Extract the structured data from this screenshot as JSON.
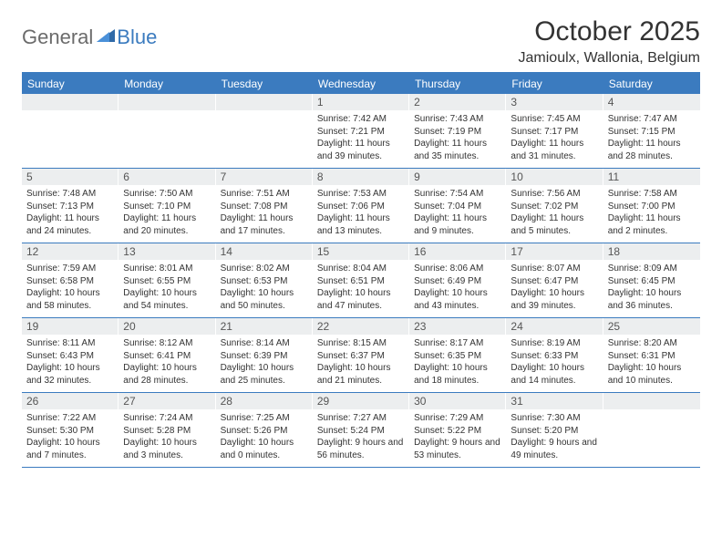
{
  "brand": {
    "part1": "General",
    "part2": "Blue"
  },
  "title": "October 2025",
  "location": "Jamioulx, Wallonia, Belgium",
  "colors": {
    "accent": "#3b7bbf",
    "daynum_bg": "#eceeef",
    "text": "#333333",
    "logo_gray": "#6b6b6b"
  },
  "day_names": [
    "Sunday",
    "Monday",
    "Tuesday",
    "Wednesday",
    "Thursday",
    "Friday",
    "Saturday"
  ],
  "weeks": [
    [
      {
        "n": "",
        "sr": "",
        "ss": "",
        "dl": ""
      },
      {
        "n": "",
        "sr": "",
        "ss": "",
        "dl": ""
      },
      {
        "n": "",
        "sr": "",
        "ss": "",
        "dl": ""
      },
      {
        "n": "1",
        "sr": "Sunrise: 7:42 AM",
        "ss": "Sunset: 7:21 PM",
        "dl": "Daylight: 11 hours and 39 minutes."
      },
      {
        "n": "2",
        "sr": "Sunrise: 7:43 AM",
        "ss": "Sunset: 7:19 PM",
        "dl": "Daylight: 11 hours and 35 minutes."
      },
      {
        "n": "3",
        "sr": "Sunrise: 7:45 AM",
        "ss": "Sunset: 7:17 PM",
        "dl": "Daylight: 11 hours and 31 minutes."
      },
      {
        "n": "4",
        "sr": "Sunrise: 7:47 AM",
        "ss": "Sunset: 7:15 PM",
        "dl": "Daylight: 11 hours and 28 minutes."
      }
    ],
    [
      {
        "n": "5",
        "sr": "Sunrise: 7:48 AM",
        "ss": "Sunset: 7:13 PM",
        "dl": "Daylight: 11 hours and 24 minutes."
      },
      {
        "n": "6",
        "sr": "Sunrise: 7:50 AM",
        "ss": "Sunset: 7:10 PM",
        "dl": "Daylight: 11 hours and 20 minutes."
      },
      {
        "n": "7",
        "sr": "Sunrise: 7:51 AM",
        "ss": "Sunset: 7:08 PM",
        "dl": "Daylight: 11 hours and 17 minutes."
      },
      {
        "n": "8",
        "sr": "Sunrise: 7:53 AM",
        "ss": "Sunset: 7:06 PM",
        "dl": "Daylight: 11 hours and 13 minutes."
      },
      {
        "n": "9",
        "sr": "Sunrise: 7:54 AM",
        "ss": "Sunset: 7:04 PM",
        "dl": "Daylight: 11 hours and 9 minutes."
      },
      {
        "n": "10",
        "sr": "Sunrise: 7:56 AM",
        "ss": "Sunset: 7:02 PM",
        "dl": "Daylight: 11 hours and 5 minutes."
      },
      {
        "n": "11",
        "sr": "Sunrise: 7:58 AM",
        "ss": "Sunset: 7:00 PM",
        "dl": "Daylight: 11 hours and 2 minutes."
      }
    ],
    [
      {
        "n": "12",
        "sr": "Sunrise: 7:59 AM",
        "ss": "Sunset: 6:58 PM",
        "dl": "Daylight: 10 hours and 58 minutes."
      },
      {
        "n": "13",
        "sr": "Sunrise: 8:01 AM",
        "ss": "Sunset: 6:55 PM",
        "dl": "Daylight: 10 hours and 54 minutes."
      },
      {
        "n": "14",
        "sr": "Sunrise: 8:02 AM",
        "ss": "Sunset: 6:53 PM",
        "dl": "Daylight: 10 hours and 50 minutes."
      },
      {
        "n": "15",
        "sr": "Sunrise: 8:04 AM",
        "ss": "Sunset: 6:51 PM",
        "dl": "Daylight: 10 hours and 47 minutes."
      },
      {
        "n": "16",
        "sr": "Sunrise: 8:06 AM",
        "ss": "Sunset: 6:49 PM",
        "dl": "Daylight: 10 hours and 43 minutes."
      },
      {
        "n": "17",
        "sr": "Sunrise: 8:07 AM",
        "ss": "Sunset: 6:47 PM",
        "dl": "Daylight: 10 hours and 39 minutes."
      },
      {
        "n": "18",
        "sr": "Sunrise: 8:09 AM",
        "ss": "Sunset: 6:45 PM",
        "dl": "Daylight: 10 hours and 36 minutes."
      }
    ],
    [
      {
        "n": "19",
        "sr": "Sunrise: 8:11 AM",
        "ss": "Sunset: 6:43 PM",
        "dl": "Daylight: 10 hours and 32 minutes."
      },
      {
        "n": "20",
        "sr": "Sunrise: 8:12 AM",
        "ss": "Sunset: 6:41 PM",
        "dl": "Daylight: 10 hours and 28 minutes."
      },
      {
        "n": "21",
        "sr": "Sunrise: 8:14 AM",
        "ss": "Sunset: 6:39 PM",
        "dl": "Daylight: 10 hours and 25 minutes."
      },
      {
        "n": "22",
        "sr": "Sunrise: 8:15 AM",
        "ss": "Sunset: 6:37 PM",
        "dl": "Daylight: 10 hours and 21 minutes."
      },
      {
        "n": "23",
        "sr": "Sunrise: 8:17 AM",
        "ss": "Sunset: 6:35 PM",
        "dl": "Daylight: 10 hours and 18 minutes."
      },
      {
        "n": "24",
        "sr": "Sunrise: 8:19 AM",
        "ss": "Sunset: 6:33 PM",
        "dl": "Daylight: 10 hours and 14 minutes."
      },
      {
        "n": "25",
        "sr": "Sunrise: 8:20 AM",
        "ss": "Sunset: 6:31 PM",
        "dl": "Daylight: 10 hours and 10 minutes."
      }
    ],
    [
      {
        "n": "26",
        "sr": "Sunrise: 7:22 AM",
        "ss": "Sunset: 5:30 PM",
        "dl": "Daylight: 10 hours and 7 minutes."
      },
      {
        "n": "27",
        "sr": "Sunrise: 7:24 AM",
        "ss": "Sunset: 5:28 PM",
        "dl": "Daylight: 10 hours and 3 minutes."
      },
      {
        "n": "28",
        "sr": "Sunrise: 7:25 AM",
        "ss": "Sunset: 5:26 PM",
        "dl": "Daylight: 10 hours and 0 minutes."
      },
      {
        "n": "29",
        "sr": "Sunrise: 7:27 AM",
        "ss": "Sunset: 5:24 PM",
        "dl": "Daylight: 9 hours and 56 minutes."
      },
      {
        "n": "30",
        "sr": "Sunrise: 7:29 AM",
        "ss": "Sunset: 5:22 PM",
        "dl": "Daylight: 9 hours and 53 minutes."
      },
      {
        "n": "31",
        "sr": "Sunrise: 7:30 AM",
        "ss": "Sunset: 5:20 PM",
        "dl": "Daylight: 9 hours and 49 minutes."
      },
      {
        "n": "",
        "sr": "",
        "ss": "",
        "dl": ""
      }
    ]
  ]
}
